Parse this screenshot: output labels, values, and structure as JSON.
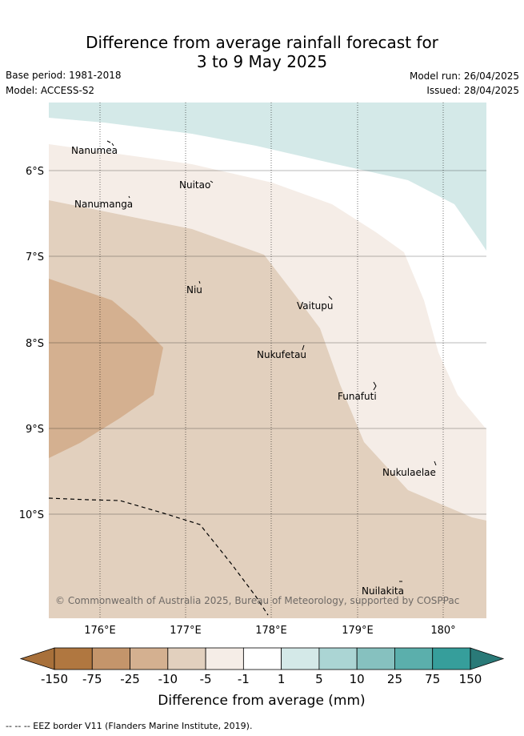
{
  "header": {
    "title_line1": "Difference from average rainfall forecast for",
    "title_line2": "3 to 9 May 2025",
    "base_period": "Base period: 1981-2018",
    "model": "Model: ACCESS-S2",
    "model_run": "Model run: 26/04/2025",
    "issued": "Issued: 28/04/2025"
  },
  "map": {
    "lat_labels": [
      "6°S",
      "7°S",
      "8°S",
      "9°S",
      "10°S"
    ],
    "lon_labels": [
      "176°E",
      "177°E",
      "178°E",
      "179°E",
      "180°"
    ],
    "places": [
      {
        "name": "Nanumea"
      },
      {
        "name": "Nuitao"
      },
      {
        "name": "Nanumanga"
      },
      {
        "name": "Niu"
      },
      {
        "name": "Vaitupu"
      },
      {
        "name": "Nukufetau"
      },
      {
        "name": "Funafuti"
      },
      {
        "name": "Nukulaelae"
      },
      {
        "name": "Nuilakita"
      }
    ],
    "copyright": "© Commonwealth of Australia 2025, Bureau of Meteorology, supported by COSPPac"
  },
  "legend": {
    "title": "Difference from average (mm)",
    "ticks": [
      "-150",
      "-75",
      "-25",
      "-10",
      "-5",
      "-1",
      "1",
      "5",
      "10",
      "25",
      "75",
      "150"
    ],
    "colors": [
      "#a8703a",
      "#b07740",
      "#c4956b",
      "#d4b090",
      "#e2d0be",
      "#f5ede7",
      "#ffffff",
      "#d4e9e8",
      "#abd5d4",
      "#86c1bf",
      "#5bafac",
      "#369e9b",
      "#2a7a78"
    ]
  },
  "footer": {
    "eez_note": "-- -- -- EEZ border V11 (Flanders Marine Institute, 2019)."
  }
}
